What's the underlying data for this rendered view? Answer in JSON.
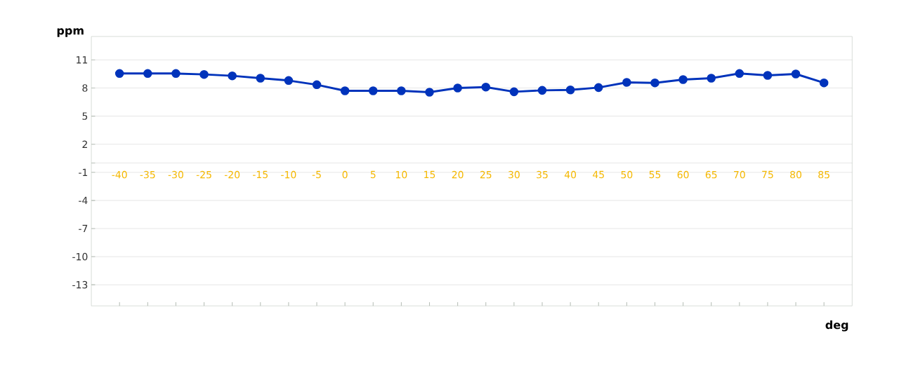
{
  "chart_data": {
    "type": "line",
    "xlabel": "deg",
    "ylabel": "ppm",
    "x": [
      -40,
      -35,
      -30,
      -25,
      -20,
      -15,
      -10,
      -5,
      0,
      5,
      10,
      15,
      20,
      25,
      30,
      35,
      40,
      45,
      50,
      55,
      60,
      65,
      70,
      75,
      80,
      85
    ],
    "series": [
      {
        "color": "#0033bb",
        "values": [
          9.55,
          9.55,
          9.55,
          9.45,
          9.3,
          9.05,
          8.8,
          8.35,
          7.7,
          7.7,
          7.7,
          7.55,
          8.0,
          8.1,
          7.6,
          7.75,
          7.8,
          8.05,
          8.6,
          8.55,
          8.9,
          9.05,
          9.55,
          9.35,
          9.5,
          8.55
        ]
      }
    ],
    "xlim": [
      -45,
      90
    ],
    "ylim": [
      -15.25,
      13.5
    ],
    "xticks": [
      -40,
      -35,
      -30,
      -25,
      -20,
      -15,
      -10,
      -5,
      0,
      5,
      10,
      15,
      20,
      25,
      30,
      35,
      40,
      45,
      50,
      55,
      60,
      65,
      70,
      75,
      80,
      85
    ],
    "yticks": [
      -13,
      -10,
      -7,
      -4,
      -1,
      {
        "value": 0,
        "label": null
      },
      2,
      5,
      8,
      11
    ],
    "grid": "y",
    "marker": "circle",
    "line_style": "solid"
  }
}
